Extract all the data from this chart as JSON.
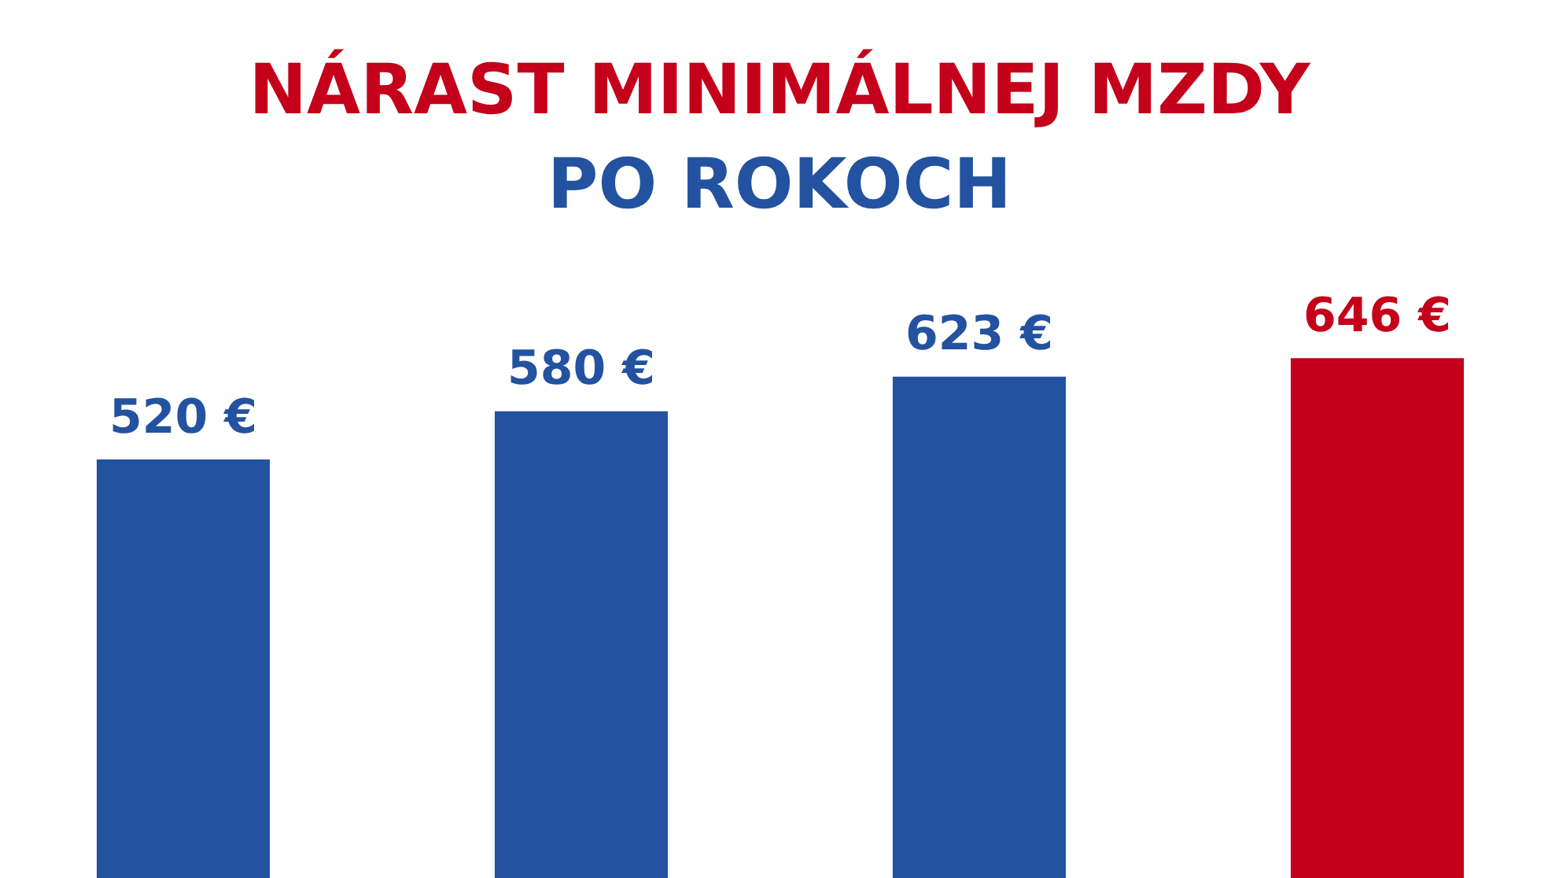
{
  "chart_data": {
    "type": "bar",
    "title": "NÁRAST MINIMÁLNEJ MZDY",
    "subtitle": "PO ROKOCH",
    "categories": [
      null,
      null,
      null,
      null
    ],
    "values": [
      520,
      580,
      623,
      646
    ],
    "colors": [
      "#2352a0",
      "#2352a0",
      "#2352a0",
      "#c4001a"
    ],
    "value_labels": [
      "520 €",
      "580 €",
      "623 €",
      "646 €"
    ],
    "legend": false
  }
}
